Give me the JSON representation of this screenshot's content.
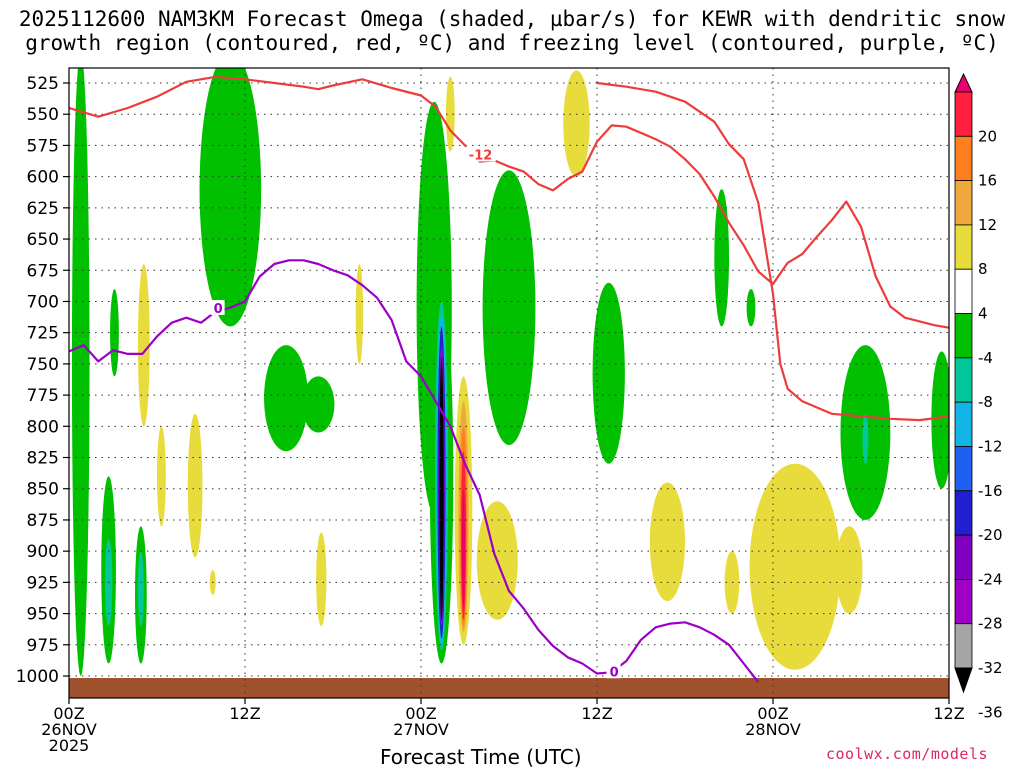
{
  "title_line1": "2025112600 NAM3KM Forecast Omega (shaded, µbar/s) for KEWR with dendritic snow",
  "title_line2": "growth region (contoured, red, ºC) and freezing level (contoured, purple, ºC)",
  "xlabel": "Forecast Time (UTC)",
  "credit": "coolwx.com/models",
  "chart_data": {
    "type": "heatmap",
    "y_levels_hPa": [
      525,
      550,
      575,
      600,
      625,
      650,
      675,
      700,
      725,
      750,
      775,
      800,
      825,
      850,
      875,
      900,
      925,
      950,
      975,
      1000
    ],
    "y_axis_inverted": true,
    "x_ticks": [
      {
        "hour": 0,
        "line1": "00Z",
        "line2": "26NOV",
        "line3": "2025"
      },
      {
        "hour": 12,
        "line1": "12Z",
        "line2": "",
        "line3": ""
      },
      {
        "hour": 24,
        "line1": "00Z",
        "line2": "27NOV",
        "line3": ""
      },
      {
        "hour": 36,
        "line1": "12Z",
        "line2": "",
        "line3": ""
      },
      {
        "hour": 48,
        "line1": "00Z",
        "line2": "28NOV",
        "line3": ""
      },
      {
        "hour": 60,
        "line1": "12Z",
        "line2": "",
        "line3": ""
      }
    ],
    "xlim_hours": [
      0,
      60
    ],
    "grid": "dotted",
    "colorbar": {
      "labels": [
        "20",
        "16",
        "12",
        "8",
        "4",
        "-4",
        "-8",
        "-12",
        "-16",
        "-20",
        "-24",
        "-28",
        "-32",
        "-36"
      ],
      "colors": [
        "#e8006e",
        "#ff2040",
        "#ff7f1f",
        "#f0a83c",
        "#e8dc3c",
        "#ffffff",
        "#00c000",
        "#00c89a",
        "#12b4e6",
        "#2060f0",
        "#2020d0",
        "#8000c0",
        "#a000c8",
        "#a6a6a6",
        "#000000"
      ]
    },
    "omega_regions": [
      {
        "level": "-8",
        "hour": 0.8,
        "p_top": 500,
        "p_bot": 1000,
        "w": 1.2
      },
      {
        "level": "-8",
        "hour": 2.7,
        "p_top": 840,
        "p_bot": 990,
        "w": 1.0
      },
      {
        "level": "-12",
        "hour": 2.7,
        "p_top": 890,
        "p_bot": 960,
        "w": 0.5
      },
      {
        "level": "-8",
        "hour": 3.1,
        "p_top": 690,
        "p_bot": 760,
        "w": 0.6
      },
      {
        "level": "-8",
        "hour": 4.9,
        "p_top": 880,
        "p_bot": 990,
        "w": 0.8
      },
      {
        "level": "-12",
        "hour": 4.9,
        "p_top": 900,
        "p_bot": 960,
        "w": 0.4
      },
      {
        "level": "-8",
        "hour": 11.0,
        "p_top": 500,
        "p_bot": 720,
        "w": 4.2
      },
      {
        "level": "-8",
        "hour": 14.8,
        "p_top": 735,
        "p_bot": 820,
        "w": 3.0
      },
      {
        "level": "-8",
        "hour": 17.0,
        "p_top": 760,
        "p_bot": 805,
        "w": 2.2
      },
      {
        "level": "-8",
        "hour": 24.9,
        "p_top": 540,
        "p_bot": 870,
        "w": 2.4
      },
      {
        "level": "-8",
        "hour": 25.4,
        "p_top": 690,
        "p_bot": 990,
        "w": 1.6
      },
      {
        "level": "-12",
        "hour": 25.4,
        "p_top": 700,
        "p_bot": 980,
        "w": 0.9
      },
      {
        "level": "-16",
        "hour": 25.4,
        "p_top": 710,
        "p_bot": 975,
        "w": 0.7
      },
      {
        "level": "-24",
        "hour": 25.4,
        "p_top": 720,
        "p_bot": 970,
        "w": 0.55
      },
      {
        "level": "-32",
        "hour": 25.4,
        "p_top": 735,
        "p_bot": 960,
        "w": 0.4
      },
      {
        "level": "-36",
        "hour": 25.4,
        "p_top": 745,
        "p_bot": 955,
        "w": 0.3
      },
      {
        "level": "-8",
        "hour": 30.0,
        "p_top": 595,
        "p_bot": 815,
        "w": 3.6
      },
      {
        "level": "-8",
        "hour": 36.8,
        "p_top": 685,
        "p_bot": 830,
        "w": 2.2
      },
      {
        "level": "-8",
        "hour": 44.5,
        "p_top": 610,
        "p_bot": 720,
        "w": 1.0
      },
      {
        "level": "-8",
        "hour": 46.5,
        "p_top": 690,
        "p_bot": 720,
        "w": 0.6
      },
      {
        "level": "-8",
        "hour": 54.3,
        "p_top": 735,
        "p_bot": 875,
        "w": 3.4
      },
      {
        "level": "-12",
        "hour": 54.3,
        "p_top": 790,
        "p_bot": 830,
        "w": 0.4
      },
      {
        "level": "-8",
        "hour": 59.5,
        "p_top": 740,
        "p_bot": 850,
        "w": 1.4
      },
      {
        "level": "4",
        "hour": 5.1,
        "p_top": 670,
        "p_bot": 800,
        "w": 0.8
      },
      {
        "level": "4",
        "hour": 6.3,
        "p_top": 800,
        "p_bot": 880,
        "w": 0.6
      },
      {
        "level": "4",
        "hour": 8.6,
        "p_top": 790,
        "p_bot": 905,
        "w": 1.0
      },
      {
        "level": "4",
        "hour": 9.8,
        "p_top": 915,
        "p_bot": 935,
        "w": 0.4
      },
      {
        "level": "4",
        "hour": 17.2,
        "p_top": 885,
        "p_bot": 960,
        "w": 0.7
      },
      {
        "level": "4",
        "hour": 19.8,
        "p_top": 670,
        "p_bot": 750,
        "w": 0.5
      },
      {
        "level": "4",
        "hour": 26.9,
        "p_top": 760,
        "p_bot": 975,
        "w": 1.2
      },
      {
        "level": "8",
        "hour": 26.9,
        "p_top": 780,
        "p_bot": 965,
        "w": 0.7
      },
      {
        "level": "12",
        "hour": 26.9,
        "p_top": 800,
        "p_bot": 960,
        "w": 0.5
      },
      {
        "level": "16",
        "hour": 26.9,
        "p_top": 820,
        "p_bot": 955,
        "w": 0.35
      },
      {
        "level": "20",
        "hour": 26.9,
        "p_top": 850,
        "p_bot": 945,
        "w": 0.2
      },
      {
        "level": "4",
        "hour": 26.0,
        "p_top": 520,
        "p_bot": 580,
        "w": 0.6
      },
      {
        "level": "4",
        "hour": 29.2,
        "p_top": 860,
        "p_bot": 955,
        "w": 2.8
      },
      {
        "level": "4",
        "hour": 34.6,
        "p_top": 515,
        "p_bot": 600,
        "w": 1.8
      },
      {
        "level": "4",
        "hour": 40.8,
        "p_top": 845,
        "p_bot": 940,
        "w": 2.4
      },
      {
        "level": "4",
        "hour": 49.5,
        "p_top": 830,
        "p_bot": 995,
        "w": 6.2
      },
      {
        "level": "4",
        "hour": 53.2,
        "p_top": 880,
        "p_bot": 950,
        "w": 1.8
      },
      {
        "level": "4",
        "hour": 45.2,
        "p_top": 900,
        "p_bot": 950,
        "w": 1.0
      }
    ],
    "dgz_label": "-12",
    "dgz_upper_contour": [
      [
        0,
        545
      ],
      [
        2,
        552
      ],
      [
        4,
        545
      ],
      [
        6,
        536
      ],
      [
        8,
        524
      ],
      [
        10,
        520
      ],
      [
        12,
        522
      ],
      [
        14,
        525
      ],
      [
        16,
        528
      ],
      [
        17,
        530
      ],
      [
        18,
        527
      ],
      [
        20,
        522
      ],
      [
        22,
        529
      ],
      [
        24,
        535
      ],
      [
        25,
        544
      ],
      [
        26,
        563
      ],
      [
        27,
        575
      ],
      [
        28,
        588
      ],
      [
        29,
        587
      ],
      [
        30,
        592
      ],
      [
        31,
        596
      ],
      [
        32,
        606
      ],
      [
        33,
        611
      ],
      [
        34,
        602
      ],
      [
        35,
        596
      ],
      [
        36,
        572
      ],
      [
        37,
        559
      ],
      [
        38,
        560
      ],
      [
        39,
        565
      ],
      [
        40,
        570
      ],
      [
        41,
        576
      ],
      [
        42,
        586
      ],
      [
        43,
        598
      ],
      [
        44,
        616
      ],
      [
        45,
        637
      ],
      [
        46,
        655
      ],
      [
        47,
        676
      ],
      [
        48,
        686
      ],
      [
        49,
        669
      ],
      [
        50,
        662
      ],
      [
        51,
        648
      ],
      [
        52,
        635
      ],
      [
        53,
        620
      ],
      [
        54,
        640
      ],
      [
        55,
        680
      ],
      [
        56,
        704
      ],
      [
        57,
        713
      ],
      [
        58,
        716
      ],
      [
        59,
        719
      ],
      [
        60,
        721
      ]
    ],
    "dgz_lower_contour": [
      [
        36,
        525
      ],
      [
        38,
        528
      ],
      [
        40,
        532
      ],
      [
        42,
        540
      ],
      [
        44,
        556
      ],
      [
        45,
        574
      ],
      [
        46,
        586
      ],
      [
        47,
        621
      ],
      [
        48,
        694
      ],
      [
        48.5,
        750
      ],
      [
        49,
        770
      ],
      [
        50,
        780
      ],
      [
        52,
        790
      ],
      [
        54,
        792
      ],
      [
        56,
        794
      ],
      [
        58,
        795
      ],
      [
        60,
        792
      ]
    ],
    "freezing_level_label": "0",
    "freezing_level_contour": [
      [
        0,
        740
      ],
      [
        1,
        735
      ],
      [
        2,
        748
      ],
      [
        3,
        739
      ],
      [
        4,
        742
      ],
      [
        5,
        742
      ],
      [
        6,
        728
      ],
      [
        7,
        717
      ],
      [
        8,
        713
      ],
      [
        9,
        717
      ],
      [
        10,
        708
      ],
      [
        11,
        705
      ],
      [
        12,
        700
      ],
      [
        13,
        680
      ],
      [
        14,
        670
      ],
      [
        15,
        667
      ],
      [
        16,
        667
      ],
      [
        17,
        670
      ],
      [
        18,
        675
      ],
      [
        19,
        679
      ],
      [
        20,
        687
      ],
      [
        21,
        697
      ],
      [
        22,
        715
      ],
      [
        23,
        748
      ],
      [
        24,
        760
      ],
      [
        25,
        780
      ],
      [
        26,
        800
      ],
      [
        27,
        830
      ],
      [
        28,
        855
      ],
      [
        29,
        902
      ],
      [
        30,
        932
      ],
      [
        31,
        946
      ],
      [
        32,
        963
      ],
      [
        33,
        976
      ],
      [
        34,
        985
      ],
      [
        35,
        990
      ],
      [
        36,
        998
      ],
      [
        37,
        997
      ],
      [
        38,
        988
      ],
      [
        39,
        971
      ],
      [
        40,
        961
      ],
      [
        41,
        958
      ],
      [
        42,
        957
      ],
      [
        43,
        961
      ],
      [
        44,
        967
      ],
      [
        45,
        975
      ],
      [
        46,
        990
      ],
      [
        47,
        1005
      ]
    ]
  }
}
